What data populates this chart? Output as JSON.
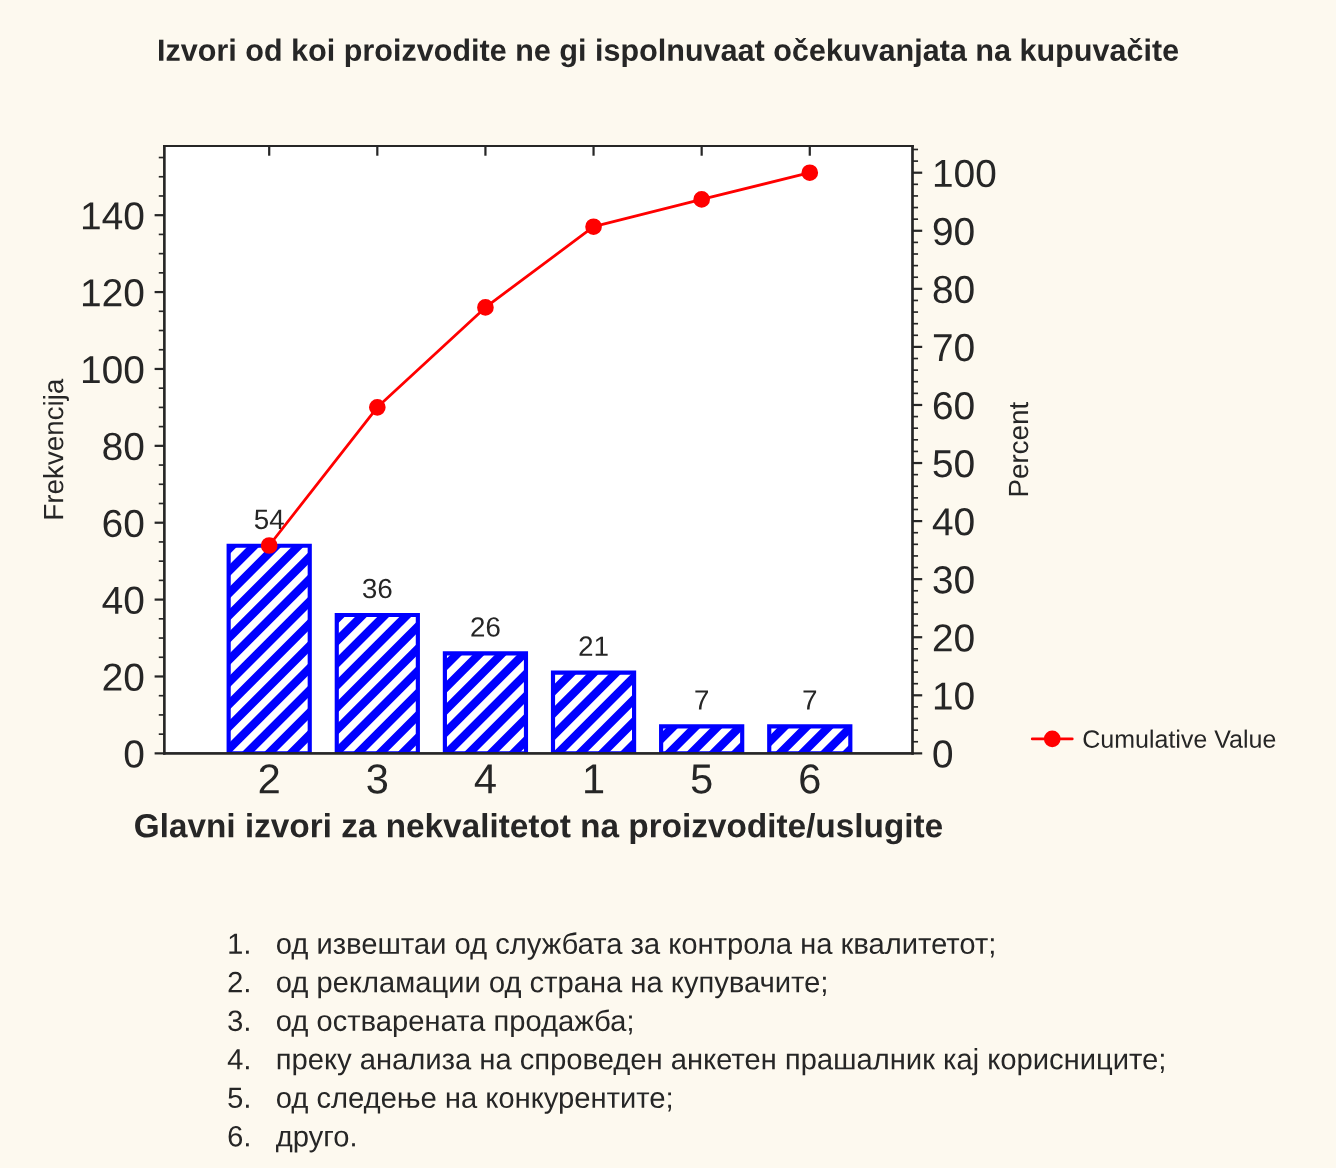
{
  "chart_data": {
    "type": "bar",
    "title": "Izvori od koi proizvodite ne gi ispolnuvaat očekuvanjata na kupuvačite",
    "xlabel": "Glavni izvori za nekvalitetot na proizvodite/uslugite",
    "ylabel": "Frekvencija",
    "y2label": "Percent",
    "categories": [
      "2",
      "3",
      "4",
      "1",
      "5",
      "6"
    ],
    "series": [
      {
        "color": "#0000ff",
        "values": [
          54,
          36,
          26,
          21,
          7,
          7
        ],
        "value_labels": [
          "54",
          "36",
          "26",
          "21",
          "7",
          "7"
        ]
      },
      {
        "type": "line",
        "name": "Cumulative Value",
        "color": "#ff0000",
        "axis": "y2",
        "values": [
          35.8,
          59.6,
          76.8,
          90.7,
          95.4,
          100
        ]
      }
    ],
    "ylim": [
      0,
      158
    ],
    "yticks": [
      0,
      20,
      40,
      60,
      80,
      100,
      120,
      140
    ],
    "y2lim": [
      0,
      104.6
    ],
    "y2ticks": [
      0,
      10,
      20,
      30,
      40,
      50,
      60,
      70,
      80,
      90,
      100
    ],
    "marker": "circle",
    "line_style": "solid",
    "grid": false,
    "legend": "right",
    "annotations": [
      "1.   од извештаи од службата за контрола на квалитетот;",
      "2.   од рекламации од страна на купувачите;",
      "3.   од остварената продажба;",
      "4.   преку анализа на спроведен анкетен прашалник кај корисниците;",
      "5.   од следење на конкурентите;",
      "6.   друго."
    ]
  }
}
